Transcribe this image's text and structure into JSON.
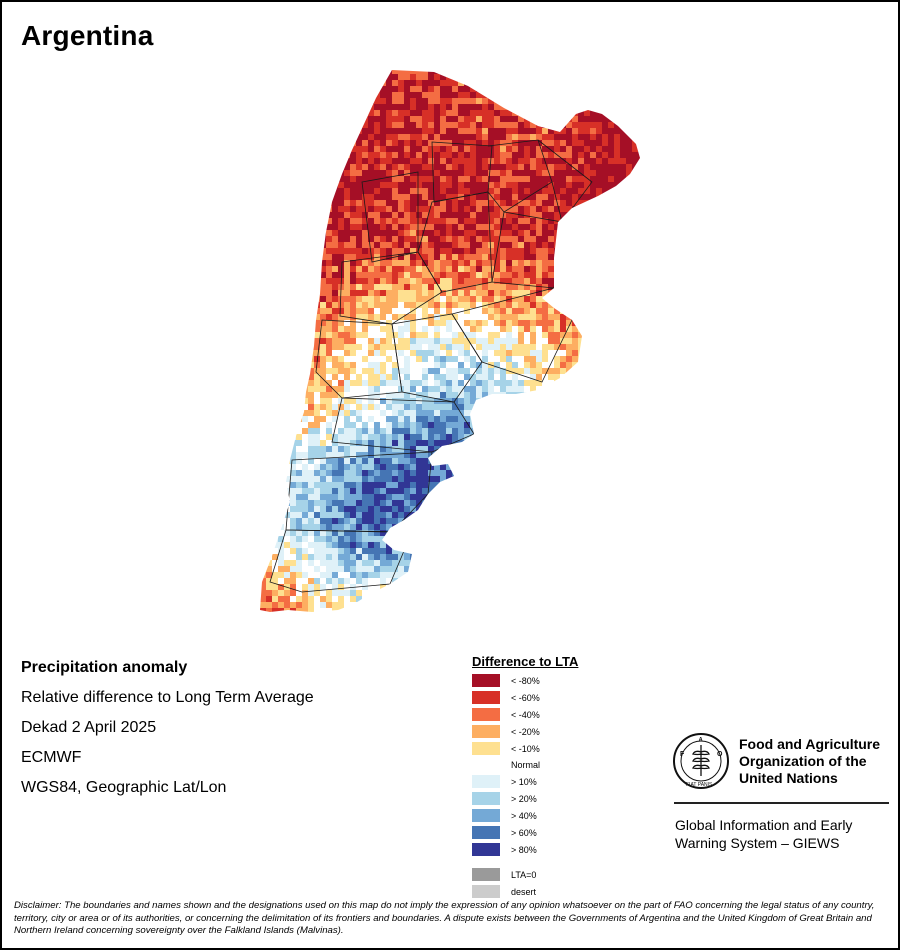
{
  "title": "Argentina",
  "info": {
    "heading": "Precipitation anomaly",
    "line1": "Relative difference to Long Term Average",
    "line2": "Dekad 2 April 2025",
    "line3": "ECMWF",
    "line4": "WGS84, Geographic Lat/Lon"
  },
  "legend": {
    "title": "Difference to LTA",
    "dry": [
      {
        "label": "< -80%",
        "color": "#a50f26"
      },
      {
        "label": "< -60%",
        "color": "#d73027"
      },
      {
        "label": "< -40%",
        "color": "#f46d43"
      },
      {
        "label": "< -20%",
        "color": "#fdae61"
      },
      {
        "label": "< -10%",
        "color": "#fee090"
      }
    ],
    "normal": "Normal",
    "wet": [
      {
        "label": "> 10%",
        "color": "#dff1f8"
      },
      {
        "label": "> 20%",
        "color": "#a6d3e8"
      },
      {
        "label": "> 40%",
        "color": "#74a9d6"
      },
      {
        "label": "> 60%",
        "color": "#4575b4"
      },
      {
        "label": "> 80%",
        "color": "#313695"
      }
    ],
    "other": [
      {
        "label": "LTA=0",
        "color": "#9a9a9a"
      },
      {
        "label": "desert",
        "color": "#cccccc"
      }
    ]
  },
  "fao": {
    "logo_text": "FAO",
    "logo_motto": "FIAT PANIS",
    "name_line1": "Food and Agriculture",
    "name_line2": "Organization of the",
    "name_line3": "United Nations",
    "giews_line1": "Global Information and Early",
    "giews_line2": "Warning System – GIEWS"
  },
  "disclaimer": "Disclaimer: The boundaries and names shown and the designations used on this map do not imply the expression of any opinion whatsoever on the part of FAO concerning the legal status of any country, territory, city or area or of its authorities, or concerning the delimitation of its frontiers and boundaries. A dispute exists between the Governments of Argentina and the United Kingdom of Great Britain and Northern Ireland concerning sovereignty over the Falkland Islands (Malvinas)."
}
